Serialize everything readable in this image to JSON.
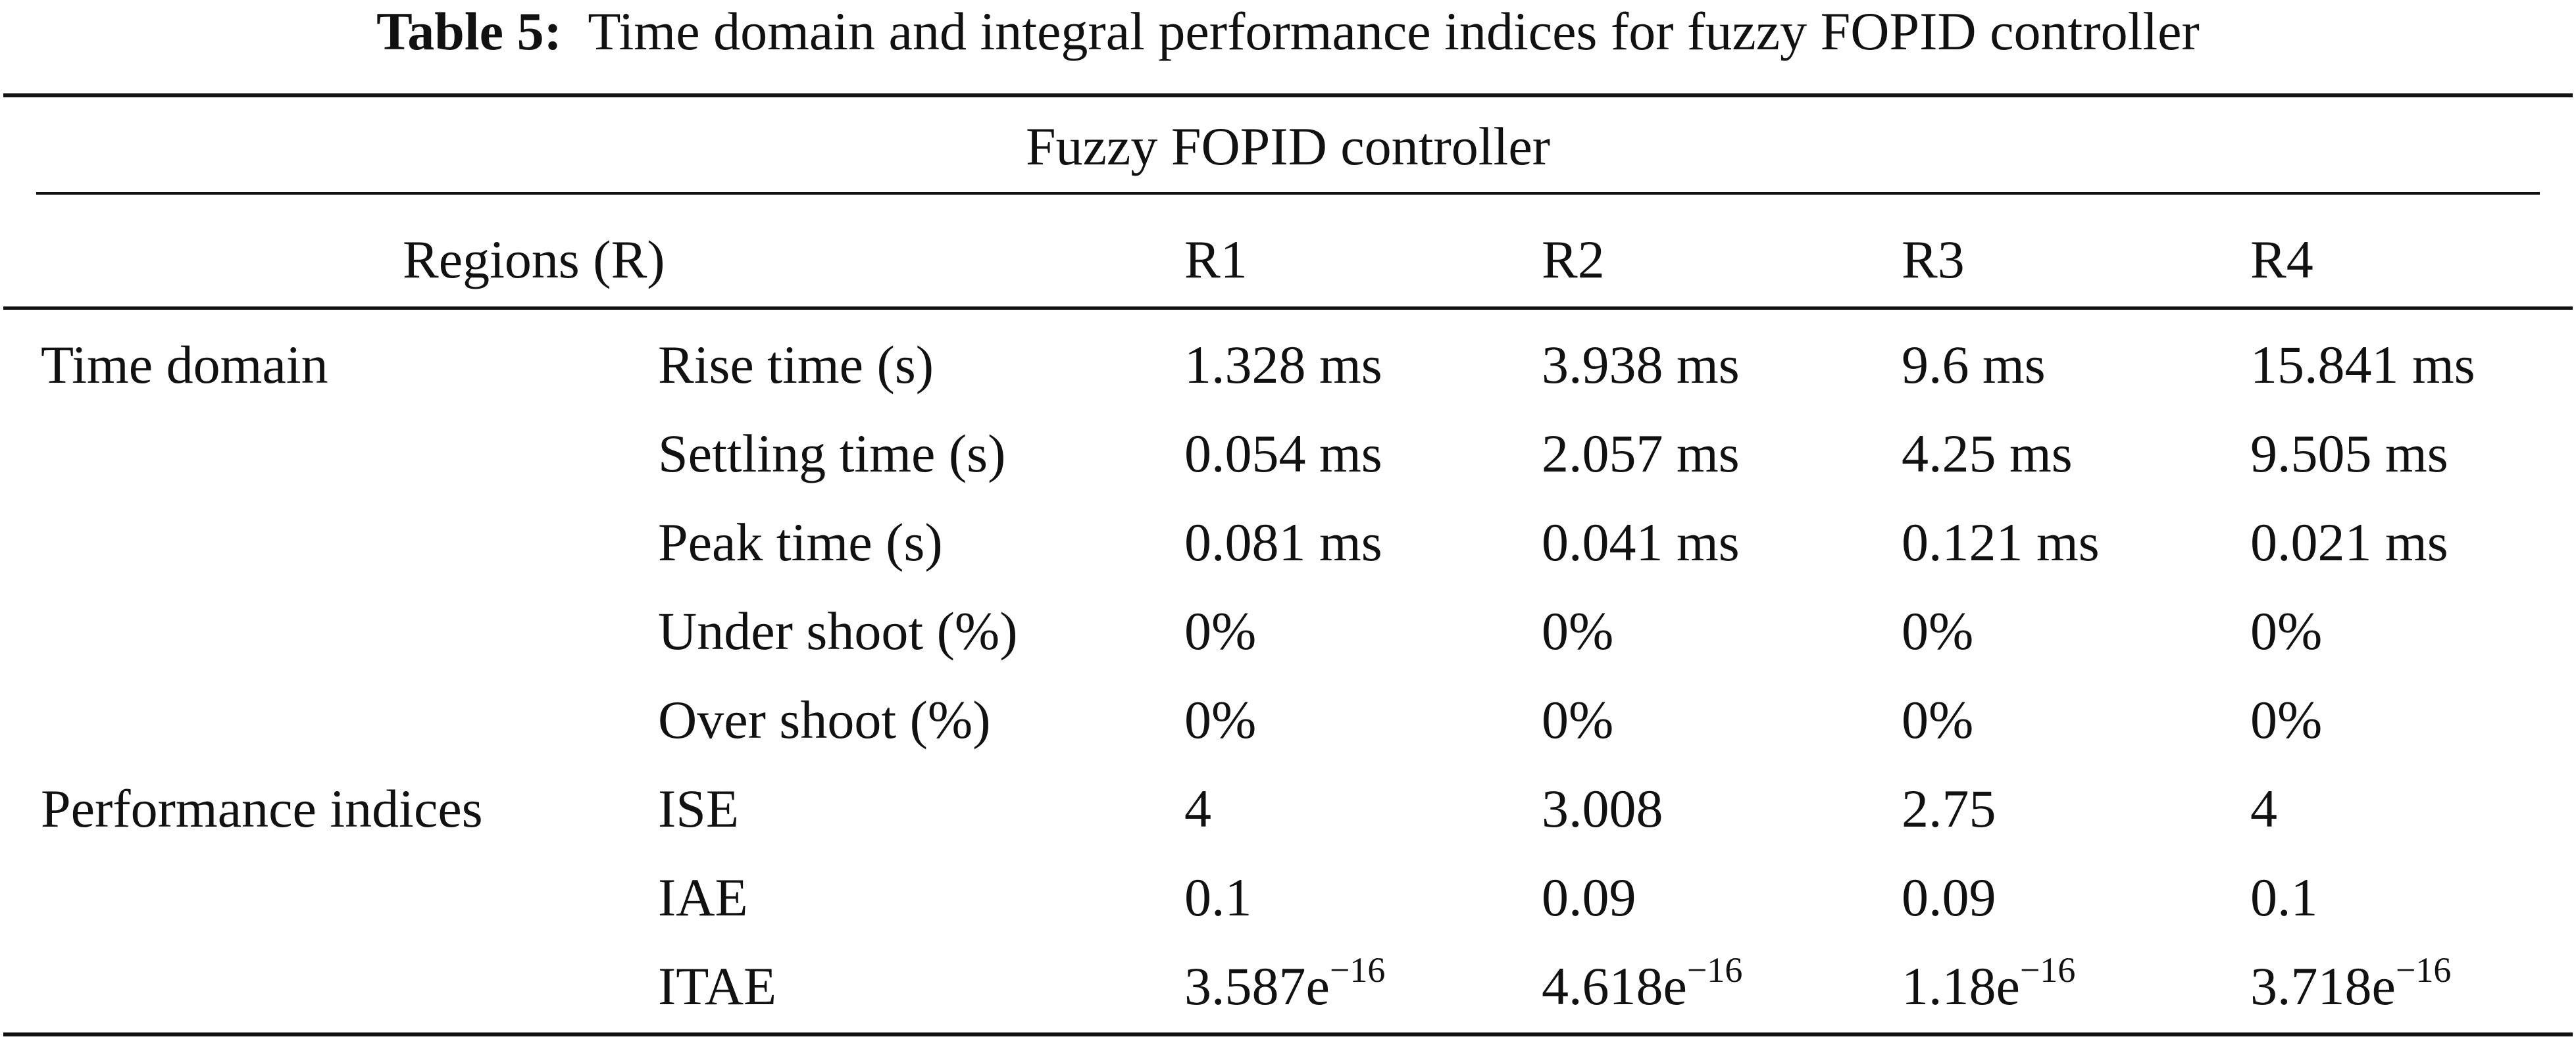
{
  "caption": {
    "label": "Table 5:",
    "text": "Time domain and integral performance indices for fuzzy FOPID controller"
  },
  "table": {
    "group_title": "Fuzzy FOPID controller",
    "regions_header": "Regions (R)",
    "columns": [
      "R1",
      "R2",
      "R3",
      "R4"
    ],
    "sections": [
      {
        "name": "Time domain",
        "rows": [
          {
            "label": "Rise time (s)",
            "values": [
              "1.328 ms",
              "3.938 ms",
              "9.6 ms",
              "15.841 ms"
            ]
          },
          {
            "label": "Settling time (s)",
            "values": [
              "0.054 ms",
              "2.057 ms",
              "4.25 ms",
              "9.505 ms"
            ]
          },
          {
            "label": "Peak time (s)",
            "values": [
              "0.081 ms",
              "0.041 ms",
              "0.121 ms",
              "0.021 ms"
            ]
          },
          {
            "label": "Under shoot (%)",
            "values": [
              "0%",
              "0%",
              "0%",
              "0%"
            ]
          },
          {
            "label": "Over shoot (%)",
            "values": [
              "0%",
              "0%",
              "0%",
              "0%"
            ]
          }
        ]
      },
      {
        "name": "Performance indices",
        "rows": [
          {
            "label": "ISE",
            "values": [
              "4",
              "3.008",
              "2.75",
              "4"
            ]
          },
          {
            "label": "IAE",
            "values": [
              "0.1",
              "0.09",
              "0.09",
              "0.1"
            ]
          },
          {
            "label": "ITAE",
            "values": [
              "3.587e",
              "4.618e",
              "1.18e",
              "3.718e"
            ],
            "exponents": [
              "−16",
              "−16",
              "−16",
              "−16"
            ]
          }
        ]
      }
    ]
  }
}
